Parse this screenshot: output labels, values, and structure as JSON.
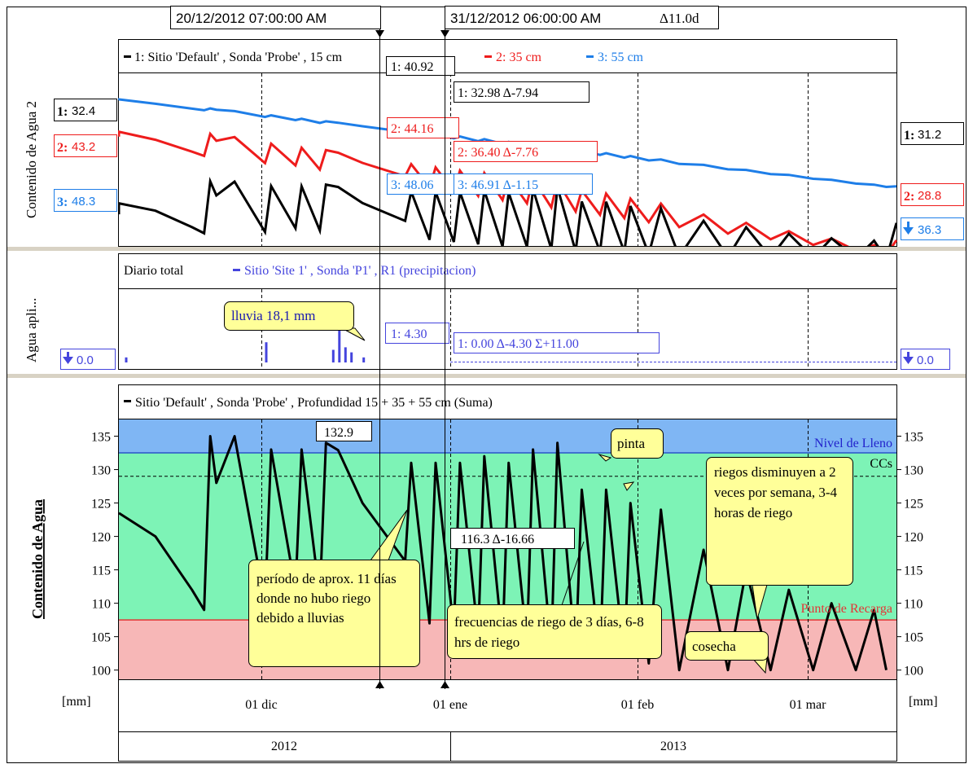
{
  "cursor1": {
    "label": "20/12/2012 07:00:00 AM"
  },
  "cursor2": {
    "label": "31/12/2012 06:00:00 AM",
    "delta": "Δ11.0d"
  },
  "colors": {
    "black": "#000000",
    "red": "#ee1c1c",
    "blue": "#1e7ee8",
    "precip": "#4444dd",
    "full_band": "#7fb6f4",
    "ok_band": "#7df3b6",
    "low_band": "#f7b7b7",
    "note_bg": "#ffff99"
  },
  "panel1": {
    "ylabel": "Contenido de Agua 2",
    "legend": [
      "1: Sitio  'Default' , Sonda 'Probe' , 15 cm",
      "2: 35 cm",
      "3: 55 cm"
    ],
    "left_marks": [
      {
        "id": "1:",
        "val": "32.4"
      },
      {
        "id": "2:",
        "val": "43.2"
      },
      {
        "id": "3:",
        "val": "48.3"
      }
    ],
    "right_marks": [
      {
        "id": "1:",
        "val": "31.2"
      },
      {
        "id": "2:",
        "val": "28.8"
      },
      {
        "id": "",
        "val": "36.3",
        "icon": "arrow-down-icon"
      }
    ],
    "cursor1_values": [
      "1: 40.92",
      "2: 44.16",
      "3: 48.06"
    ],
    "cursor2_values": [
      "1: 32.98  Δ-7.94",
      "2: 36.40  Δ-7.76",
      "3: 46.91  Δ-1.15"
    ]
  },
  "panel2": {
    "ylabel": "Agua apli...",
    "legend_prefix": "Diario total",
    "legend": "Sitio  'Site 1' , Sonda 'P1' , R1 (precipitacion)",
    "left_mark": "0.0",
    "right_mark": "0.0",
    "cursor1_value": "1: 4.30",
    "cursor2_value": "1: 0.00  Δ-4.30  Σ+11.00",
    "rain_note": "lluvia 18,1 mm"
  },
  "panel3": {
    "ylabel": "Contenido de Agua",
    "legend": "Sitio  'Default' , Sonda 'Probe' , Profundidad 15 + 35 + 55 cm (Suma)",
    "yticks": [
      "135",
      "130",
      "125",
      "120",
      "115",
      "110",
      "105",
      "100"
    ],
    "unit_left": "[mm]",
    "unit_right": "[mm]",
    "band_full": "Nivel de Lleno",
    "line_cc": "CCs",
    "band_low": "Punto de Recarga",
    "cursor1_value": "132.9",
    "cursor2_value": "116.3  Δ-16.66",
    "notes": {
      "no_irrigation": "período de aprox. 11 días donde no hubo riego debido a lluvias",
      "frequency": "frecuencias de riego de 3 días, 6-8 hrs de riego",
      "pinta": "pinta",
      "reduced": "riegos disminuyen a 2 veces por semana, 3-4 horas de riego",
      "harvest": "cosecha"
    }
  },
  "xaxis": {
    "months": [
      "01 dic",
      "01 ene",
      "01 feb",
      "01 mar"
    ],
    "years": [
      "2012",
      "2013"
    ]
  },
  "chart_data": [
    {
      "type": "line",
      "ylabel": "Contenido de Agua 2",
      "series": [
        {
          "name": "1: Sitio  'Default' , Sonda 'Probe' , 15 cm",
          "start": 32.4,
          "end": 31.2,
          "at_cursor1": 40.92,
          "at_cursor2": 32.98
        },
        {
          "name": "2: 35 cm",
          "start": 43.2,
          "end": 28.8,
          "at_cursor1": 44.16,
          "at_cursor2": 36.4
        },
        {
          "name": "3: 55 cm",
          "start": 48.3,
          "end": 36.3,
          "at_cursor1": 48.06,
          "at_cursor2": 46.91
        }
      ]
    },
    {
      "type": "bar",
      "ylabel": "Agua apli...",
      "series": [
        {
          "name": "Sitio  'Site 1' , Sonda 'P1' , R1 (precipitacion)",
          "at_cursor1": 4.3,
          "at_cursor2": 0.0,
          "sum_between_cursors": 11.0
        }
      ],
      "bar_days": [
        {
          "date": "2012-11-15",
          "value": 1.0
        },
        {
          "date": "2012-12-08",
          "value": 4.0
        },
        {
          "date": "2012-12-19",
          "value": 2.5
        },
        {
          "date": "2012-12-20",
          "value": 11.0
        },
        {
          "date": "2012-12-21",
          "value": 3.0
        },
        {
          "date": "2012-12-22",
          "value": 2.0
        },
        {
          "date": "2012-12-24",
          "value": 1.0
        }
      ]
    },
    {
      "type": "line",
      "ylabel": "Contenido de Agua",
      "yunit": "mm",
      "ylim": [
        98.5,
        137.5
      ],
      "bands": {
        "full": [
          132.5,
          137.5
        ],
        "cc": 129,
        "refill": 107.5
      },
      "at_cursor1": 132.9,
      "at_cursor2": 116.3,
      "delta": -16.66,
      "points": [
        [
          "2012-11-14",
          123.5
        ],
        [
          "2012-11-20",
          120
        ],
        [
          "2012-11-26",
          112
        ],
        [
          "2012-11-28",
          109
        ],
        [
          "2012-11-29",
          135
        ],
        [
          "2012-11-30",
          128
        ],
        [
          "2012-12-03",
          135
        ],
        [
          "2012-12-08",
          110
        ],
        [
          "2012-12-09",
          133
        ],
        [
          "2012-12-13",
          112
        ],
        [
          "2012-12-14",
          133
        ],
        [
          "2012-12-17",
          111
        ],
        [
          "2012-12-18",
          134
        ],
        [
          "2012-12-20",
          132.9
        ],
        [
          "2012-12-24",
          125
        ],
        [
          "2012-12-31",
          116.3
        ],
        [
          "2013-01-01",
          131
        ],
        [
          "2013-01-04",
          107
        ],
        [
          "2013-01-05",
          131
        ],
        [
          "2013-01-08",
          106
        ],
        [
          "2013-01-09",
          131
        ],
        [
          "2013-01-12",
          105
        ],
        [
          "2013-01-13",
          132
        ],
        [
          "2013-01-16",
          104
        ],
        [
          "2013-01-17",
          131
        ],
        [
          "2013-01-20",
          104
        ],
        [
          "2013-01-21",
          133
        ],
        [
          "2013-01-24",
          103
        ],
        [
          "2013-01-25",
          134
        ],
        [
          "2013-01-28",
          102
        ],
        [
          "2013-01-29",
          127
        ],
        [
          "2013-02-01",
          102
        ],
        [
          "2013-02-02",
          127
        ],
        [
          "2013-02-05",
          102
        ],
        [
          "2013-02-06",
          125
        ],
        [
          "2013-02-09",
          101
        ],
        [
          "2013-02-11",
          124
        ],
        [
          "2013-02-14",
          100
        ],
        [
          "2013-02-18",
          118
        ],
        [
          "2013-02-22",
          100
        ],
        [
          "2013-02-25",
          115
        ],
        [
          "2013-03-01",
          100
        ],
        [
          "2013-03-04",
          112
        ],
        [
          "2013-03-08",
          100
        ],
        [
          "2013-03-11",
          110
        ],
        [
          "2013-03-15",
          100
        ],
        [
          "2013-03-18",
          109
        ],
        [
          "2013-03-20",
          100
        ]
      ]
    }
  ]
}
